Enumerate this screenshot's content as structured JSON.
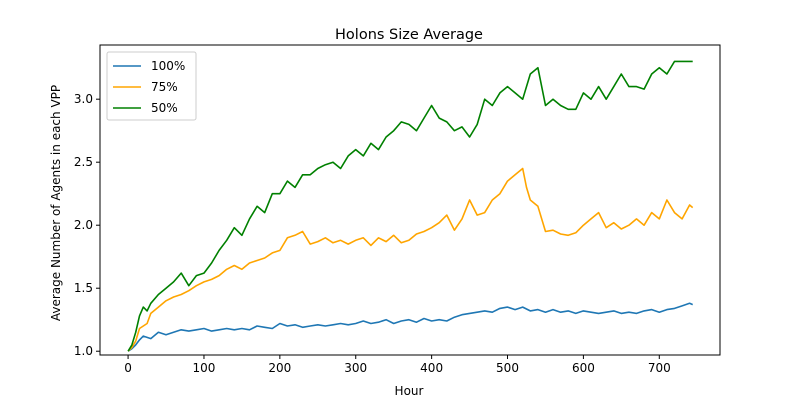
{
  "chart_data": {
    "type": "line",
    "title": "Holons Size Average",
    "xlabel": "Hour",
    "ylabel": "Average Number of Agents in each VPP",
    "xlim": [
      -37,
      780
    ],
    "ylim": [
      0.97,
      3.43
    ],
    "xticks": [
      0,
      100,
      200,
      300,
      400,
      500,
      600,
      700
    ],
    "xtick_labels": [
      "0",
      "100",
      "200",
      "300",
      "400",
      "500",
      "600",
      "700"
    ],
    "yticks": [
      1.0,
      1.5,
      2.0,
      2.5,
      3.0
    ],
    "ytick_labels": [
      "1.0",
      "1.5",
      "2.0",
      "2.5",
      "3.0"
    ],
    "grid": false,
    "legend_position": "top-left",
    "series": [
      {
        "name": "100%",
        "color": "#1f77b4",
        "x": [
          0,
          5,
          10,
          15,
          20,
          25,
          30,
          40,
          50,
          60,
          70,
          80,
          90,
          100,
          110,
          120,
          130,
          140,
          150,
          160,
          170,
          180,
          190,
          200,
          210,
          220,
          230,
          240,
          250,
          260,
          270,
          280,
          290,
          300,
          310,
          320,
          330,
          340,
          350,
          360,
          370,
          380,
          390,
          400,
          410,
          420,
          430,
          440,
          450,
          460,
          470,
          480,
          490,
          500,
          510,
          520,
          530,
          540,
          550,
          560,
          570,
          580,
          590,
          600,
          610,
          620,
          630,
          640,
          650,
          660,
          670,
          680,
          690,
          700,
          710,
          720,
          730,
          740,
          744
        ],
        "values": [
          1.0,
          1.02,
          1.05,
          1.09,
          1.12,
          1.11,
          1.1,
          1.15,
          1.13,
          1.15,
          1.17,
          1.16,
          1.17,
          1.18,
          1.16,
          1.17,
          1.18,
          1.17,
          1.18,
          1.17,
          1.2,
          1.19,
          1.18,
          1.22,
          1.2,
          1.21,
          1.19,
          1.2,
          1.21,
          1.2,
          1.21,
          1.22,
          1.21,
          1.22,
          1.24,
          1.22,
          1.23,
          1.25,
          1.22,
          1.24,
          1.25,
          1.23,
          1.26,
          1.24,
          1.25,
          1.24,
          1.27,
          1.29,
          1.3,
          1.31,
          1.32,
          1.31,
          1.34,
          1.35,
          1.33,
          1.35,
          1.32,
          1.33,
          1.31,
          1.33,
          1.31,
          1.32,
          1.3,
          1.32,
          1.31,
          1.3,
          1.31,
          1.32,
          1.3,
          1.31,
          1.3,
          1.32,
          1.33,
          1.31,
          1.33,
          1.34,
          1.36,
          1.38,
          1.37
        ]
      },
      {
        "name": "75%",
        "color": "#ffa500",
        "x": [
          0,
          5,
          10,
          15,
          20,
          25,
          30,
          40,
          50,
          60,
          70,
          80,
          90,
          100,
          110,
          120,
          130,
          140,
          150,
          160,
          170,
          180,
          190,
          200,
          210,
          220,
          230,
          240,
          250,
          260,
          270,
          280,
          290,
          300,
          310,
          320,
          330,
          340,
          350,
          360,
          370,
          380,
          390,
          400,
          410,
          420,
          430,
          440,
          450,
          460,
          470,
          480,
          490,
          500,
          510,
          520,
          525,
          530,
          540,
          550,
          560,
          570,
          580,
          590,
          600,
          610,
          620,
          630,
          640,
          650,
          660,
          670,
          680,
          690,
          700,
          710,
          720,
          730,
          740,
          744
        ],
        "values": [
          1.0,
          1.03,
          1.08,
          1.18,
          1.2,
          1.22,
          1.3,
          1.35,
          1.4,
          1.43,
          1.45,
          1.48,
          1.52,
          1.55,
          1.57,
          1.6,
          1.65,
          1.68,
          1.65,
          1.7,
          1.72,
          1.74,
          1.78,
          1.8,
          1.9,
          1.92,
          1.95,
          1.85,
          1.87,
          1.9,
          1.86,
          1.88,
          1.85,
          1.88,
          1.9,
          1.84,
          1.9,
          1.87,
          1.92,
          1.86,
          1.88,
          1.93,
          1.95,
          1.98,
          2.02,
          2.08,
          1.96,
          2.05,
          2.2,
          2.08,
          2.1,
          2.2,
          2.25,
          2.35,
          2.4,
          2.45,
          2.3,
          2.2,
          2.15,
          1.95,
          1.96,
          1.93,
          1.92,
          1.94,
          2.0,
          2.05,
          2.1,
          1.98,
          2.02,
          1.97,
          2.0,
          2.05,
          2.0,
          2.1,
          2.05,
          2.2,
          2.1,
          2.05,
          2.16,
          2.14
        ]
      },
      {
        "name": "50%",
        "color": "#008000",
        "x": [
          0,
          5,
          10,
          15,
          20,
          25,
          30,
          40,
          50,
          60,
          70,
          80,
          90,
          100,
          110,
          120,
          130,
          140,
          150,
          160,
          170,
          180,
          190,
          200,
          210,
          220,
          230,
          240,
          250,
          260,
          270,
          280,
          290,
          300,
          310,
          320,
          330,
          340,
          350,
          360,
          370,
          380,
          390,
          400,
          410,
          420,
          430,
          440,
          450,
          460,
          470,
          480,
          490,
          500,
          510,
          520,
          530,
          540,
          550,
          560,
          570,
          580,
          590,
          600,
          610,
          620,
          630,
          640,
          650,
          660,
          670,
          680,
          690,
          700,
          710,
          720,
          730,
          740,
          744
        ],
        "values": [
          1.0,
          1.05,
          1.15,
          1.28,
          1.35,
          1.32,
          1.38,
          1.45,
          1.5,
          1.55,
          1.62,
          1.52,
          1.6,
          1.62,
          1.7,
          1.8,
          1.88,
          1.98,
          1.92,
          2.05,
          2.15,
          2.1,
          2.25,
          2.25,
          2.35,
          2.3,
          2.4,
          2.4,
          2.45,
          2.48,
          2.5,
          2.45,
          2.55,
          2.6,
          2.55,
          2.65,
          2.6,
          2.7,
          2.75,
          2.82,
          2.8,
          2.75,
          2.85,
          2.95,
          2.85,
          2.82,
          2.75,
          2.78,
          2.7,
          2.8,
          3.0,
          2.95,
          3.05,
          3.1,
          3.05,
          3.0,
          3.2,
          3.25,
          2.95,
          3.0,
          2.95,
          2.92,
          2.92,
          3.05,
          3.0,
          3.1,
          3.0,
          3.1,
          3.2,
          3.1,
          3.1,
          3.08,
          3.2,
          3.25,
          3.2,
          3.3,
          3.3,
          3.3,
          3.3
        ]
      }
    ]
  }
}
